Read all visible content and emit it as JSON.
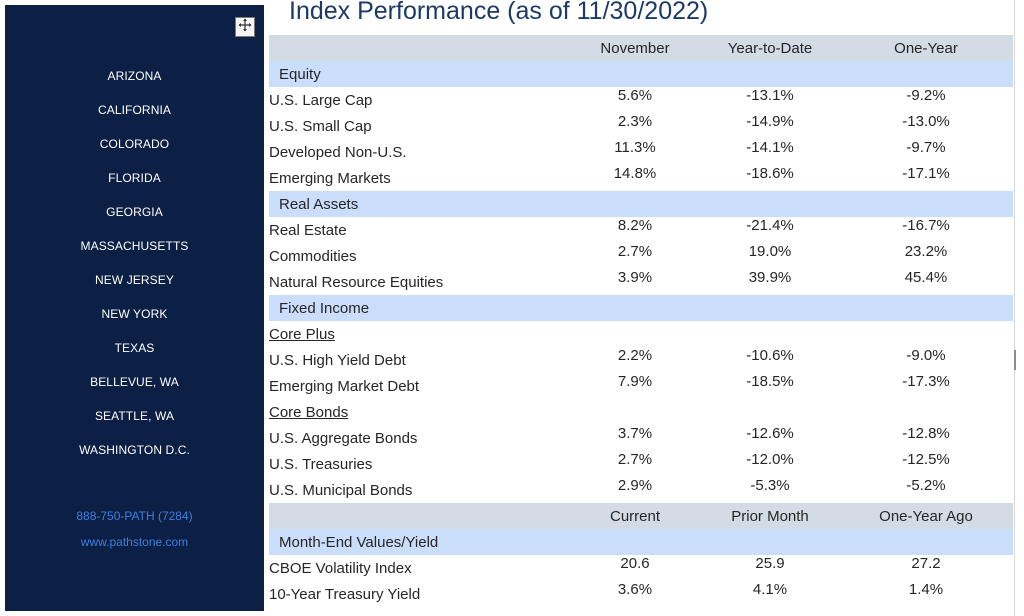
{
  "title": "Index Performance (as of 11/30/2022)",
  "sidebar": {
    "handle_icon": "move-handle-icon",
    "locations": [
      "ARIZONA",
      "CALIFORNIA",
      "COLORADO",
      "FLORIDA",
      "GEORGIA",
      "MASSACHUSETTS",
      "NEW JERSEY",
      "NEW YORK",
      "TEXAS",
      "BELLEVUE, WA",
      "SEATTLE, WA",
      "WASHINGTON D.C."
    ],
    "phone": "888-750-PATH (7284)",
    "website": "www.pathstone.com",
    "background_color": "#0c1f44",
    "link_color": "#3f7fe0"
  },
  "table": {
    "header": {
      "label": "",
      "c1": "November",
      "c2": "Year-to-Date",
      "c3": "One-Year"
    },
    "sections": {
      "equity": "Equity",
      "real_assets": "Real Assets",
      "fixed_income": "Fixed Income",
      "month_end": "Month-End Values/Yield"
    },
    "equity": [
      {
        "label": "U.S. Large Cap",
        "c1": "5.6%",
        "c2": "-13.1%",
        "c3": "-9.2%"
      },
      {
        "label": "U.S. Small Cap",
        "c1": "2.3%",
        "c2": "-14.9%",
        "c3": "-13.0%"
      },
      {
        "label": "Developed Non-U.S.",
        "c1": "11.3%",
        "c2": "-14.1%",
        "c3": "-9.7%"
      },
      {
        "label": "Emerging Markets",
        "c1": "14.8%",
        "c2": "-18.6%",
        "c3": "-17.1%"
      }
    ],
    "real_assets": [
      {
        "label": "Real Estate",
        "c1": "8.2%",
        "c2": "-21.4%",
        "c3": "-16.7%"
      },
      {
        "label": "Commodities",
        "c1": "2.7%",
        "c2": "19.0%",
        "c3": "23.2%"
      },
      {
        "label": "Natural Resource Equities",
        "c1": "3.9%",
        "c2": "39.9%",
        "c3": "45.4%"
      }
    ],
    "fixed_income": {
      "core_plus_label": "Core Plus",
      "core_plus": [
        {
          "label": "U.S. High Yield Debt",
          "c1": "2.2%",
          "c2": "-10.6%",
          "c3": "-9.0%"
        },
        {
          "label": "Emerging Market Debt",
          "c1": "7.9%",
          "c2": "-18.5%",
          "c3": "-17.3%"
        }
      ],
      "core_bonds_label": "Core Bonds",
      "core_bonds": [
        {
          "label": "U.S. Aggregate Bonds",
          "c1": "3.7%",
          "c2": "-12.6%",
          "c3": "-12.8%"
        },
        {
          "label": "U.S. Treasuries",
          "c1": "2.7%",
          "c2": "-12.0%",
          "c3": "-12.5%"
        },
        {
          "label": "U.S. Municipal Bonds",
          "c1": "2.9%",
          "c2": "-5.3%",
          "c3": "-5.2%"
        }
      ]
    },
    "header2": {
      "label": "",
      "c1": "Current",
      "c2": "Prior Month",
      "c3": "One-Year Ago"
    },
    "month_end": [
      {
        "label": "CBOE Volatility Index",
        "c1": "20.6",
        "c2": "25.9",
        "c3": "27.2"
      },
      {
        "label": "10-Year Treasury Yield",
        "c1": "3.6%",
        "c2": "4.1%",
        "c3": "1.4%"
      }
    ],
    "header_color": "#d3dbe5",
    "section_color": "#cadefc"
  }
}
